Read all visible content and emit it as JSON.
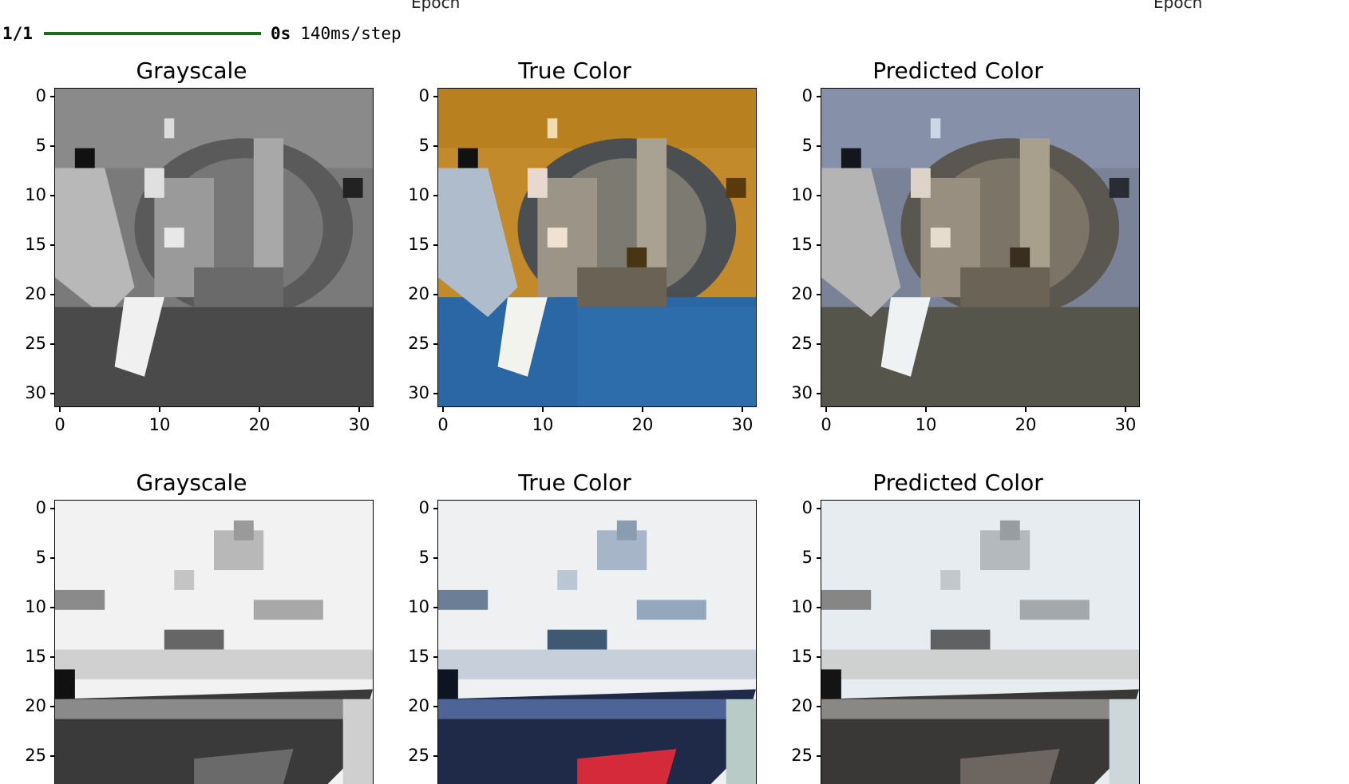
{
  "clipped_axis_labels": [
    "Epoch",
    "Epoch"
  ],
  "progress": {
    "counter": "1/1",
    "fraction_complete": 1.0,
    "elapsed": "0s",
    "rate": "140ms/step",
    "bar_color": "#1b6d1b"
  },
  "figure": {
    "row1": {
      "grayscale": {
        "title": "Grayscale",
        "yticks": [
          "0",
          "5",
          "10",
          "15",
          "20",
          "25",
          "30"
        ],
        "xticks": [
          "0",
          "10",
          "20",
          "30"
        ]
      },
      "true_color": {
        "title": "True Color",
        "yticks": [
          "0",
          "5",
          "10",
          "15",
          "20",
          "25",
          "30"
        ],
        "xticks": [
          "0",
          "10",
          "20",
          "30"
        ]
      },
      "predicted": {
        "title": "Predicted Color",
        "yticks": [
          "0",
          "5",
          "10",
          "15",
          "20",
          "25",
          "30"
        ],
        "xticks": [
          "0",
          "10",
          "20",
          "30"
        ]
      }
    },
    "row2": {
      "grayscale": {
        "title": "Grayscale",
        "yticks": [
          "0",
          "5",
          "10",
          "15",
          "20",
          "25"
        ]
      },
      "true_color": {
        "title": "True Color",
        "yticks": [
          "0",
          "5",
          "10",
          "15",
          "20",
          "25"
        ]
      },
      "predicted": {
        "title": "Predicted Color",
        "yticks": [
          "0",
          "5",
          "10",
          "15",
          "20",
          "25"
        ]
      }
    }
  }
}
